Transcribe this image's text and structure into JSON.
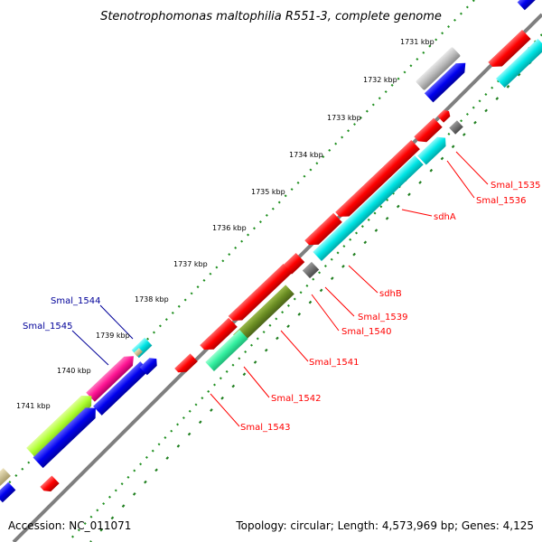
{
  "title": "Stenotrophomonas maltophilia R551-3, complete genome",
  "footer": {
    "accession": "Accession: NC_011071",
    "summary": "Topology: circular; Length: 4,573,969 bp; Genes: 4,125"
  },
  "ticks": [
    "1731 kbp",
    "1732 kbp",
    "1733 kbp",
    "1734 kbp",
    "1735 kbp",
    "1736 kbp",
    "1737 kbp",
    "1738 kbp",
    "1739 kbp",
    "1740 kbp",
    "1741 kbp"
  ],
  "genes": [
    {
      "label": "Smal_1535",
      "color": "#ff0000"
    },
    {
      "label": "Smal_1536",
      "color": "#ff0000"
    },
    {
      "label": "sdhA",
      "color": "#ff0000"
    },
    {
      "label": "sdhB",
      "color": "#ff0000"
    },
    {
      "label": "Smal_1539",
      "color": "#ff0000"
    },
    {
      "label": "Smal_1540",
      "color": "#ff0000"
    },
    {
      "label": "Smal_1541",
      "color": "#ff0000"
    },
    {
      "label": "Smal_1542",
      "color": "#ff0000"
    },
    {
      "label": "Smal_1543",
      "color": "#ff0000"
    },
    {
      "label": "Smal_1544",
      "color": "#000099"
    },
    {
      "label": "Smal_1545",
      "color": "#000099"
    }
  ],
  "colors": {
    "backbone": "#7f7f7f",
    "gc_dots": "#1f8f1f",
    "skew_dashes": "#1f7f1f",
    "red_feature": "#ff0000",
    "cyan_feature": "#00e5e5",
    "blue_feature": "#0000ee",
    "gray_feature": "#bdbdbd",
    "dark_gray_feature": "#6f6f6f",
    "olive_feature": "#6b8e23",
    "seafoam_feature": "#33f0a0",
    "magenta_feature": "#ff1493",
    "lime_feature": "#adff2f",
    "tan_feature": "#cdbf8c"
  }
}
